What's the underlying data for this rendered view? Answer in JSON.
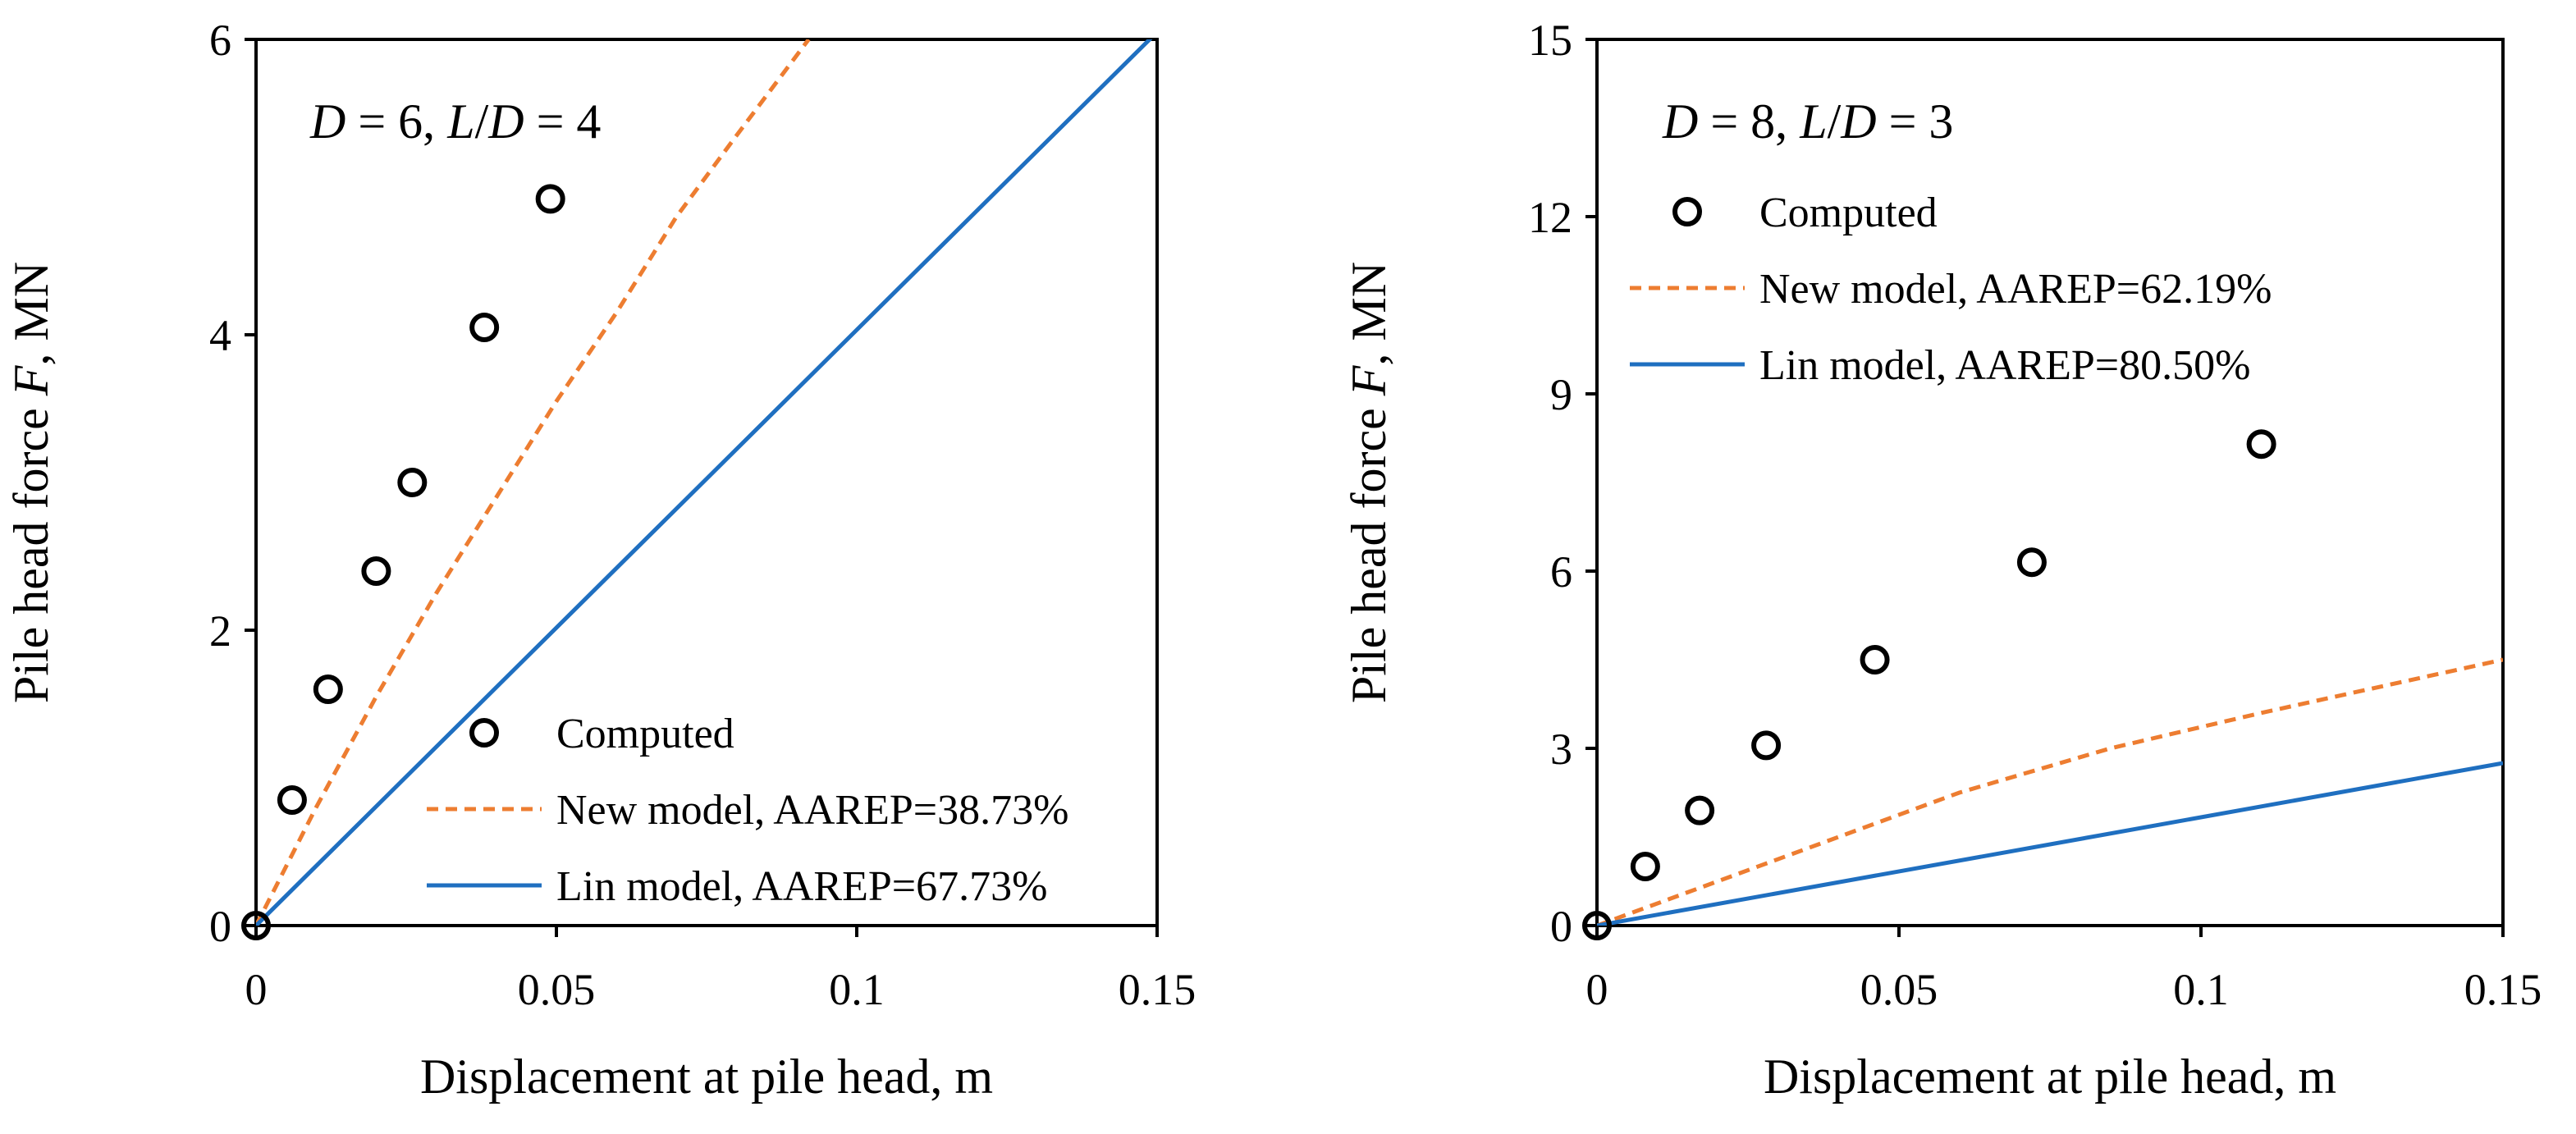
{
  "chart_data": [
    {
      "type": "scatter",
      "panel_label_parts": [
        {
          "text": "D",
          "italic": true
        },
        {
          "text": " = 6, ",
          "italic": false
        },
        {
          "text": "L",
          "italic": true
        },
        {
          "text": "/",
          "italic": false
        },
        {
          "text": "D",
          "italic": true
        },
        {
          "text": " = 4",
          "italic": false
        }
      ],
      "xlabel": "Displacement at pile head, m",
      "ylabel_parts": [
        {
          "text": "Pile head force ",
          "italic": false
        },
        {
          "text": "F",
          "italic": true
        },
        {
          "text": ", MN",
          "italic": false
        }
      ],
      "xlim": [
        0,
        0.15
      ],
      "ylim": [
        0,
        6
      ],
      "xticks": [
        0,
        0.05,
        0.1,
        0.15
      ],
      "xtick_labels": [
        "0",
        "0.05",
        "0.1",
        "0.15"
      ],
      "yticks": [
        0,
        2,
        4,
        6
      ],
      "ytick_labels": [
        "0",
        "2",
        "4",
        "6"
      ],
      "legend_position": "bottom-right",
      "series": [
        {
          "name": "Computed",
          "kind": "marker",
          "color": "#000000",
          "x": [
            0,
            0.006,
            0.012,
            0.02,
            0.026,
            0.038,
            0.049
          ],
          "y": [
            0,
            0.85,
            1.6,
            2.4,
            3.0,
            4.05,
            4.92
          ]
        },
        {
          "name": "New model, AAREP=38.73%",
          "kind": "dashed",
          "color": "#ED7D31",
          "x": [
            0,
            0.01,
            0.02,
            0.03,
            0.04,
            0.05,
            0.06,
            0.07,
            0.08,
            0.092
          ],
          "y": [
            0,
            0.8,
            1.55,
            2.25,
            2.9,
            3.55,
            4.15,
            4.8,
            5.35,
            6.0
          ]
        },
        {
          "name": "Lin model, AAREP=67.73%",
          "kind": "solid",
          "color": "#1F6FC0",
          "x": [
            0,
            0.15
          ],
          "y": [
            0,
            6.05
          ]
        }
      ]
    },
    {
      "type": "scatter",
      "panel_label_parts": [
        {
          "text": "D",
          "italic": true
        },
        {
          "text": " = 8, ",
          "italic": false
        },
        {
          "text": "L",
          "italic": true
        },
        {
          "text": "/",
          "italic": false
        },
        {
          "text": "D",
          "italic": true
        },
        {
          "text": " = 3",
          "italic": false
        }
      ],
      "xlabel": "Displacement at pile head, m",
      "ylabel_parts": [
        {
          "text": "Pile head force ",
          "italic": false
        },
        {
          "text": "F",
          "italic": true
        },
        {
          "text": ", MN",
          "italic": false
        }
      ],
      "xlim": [
        0,
        0.15
      ],
      "ylim": [
        0,
        15
      ],
      "xticks": [
        0,
        0.05,
        0.1,
        0.15
      ],
      "xtick_labels": [
        "0",
        "0.05",
        "0.1",
        "0.15"
      ],
      "yticks": [
        0,
        3,
        6,
        9,
        12,
        15
      ],
      "ytick_labels": [
        "0",
        "3",
        "6",
        "9",
        "12",
        "15"
      ],
      "legend_position": "top-left",
      "series": [
        {
          "name": "Computed",
          "kind": "marker",
          "color": "#000000",
          "x": [
            0,
            0.008,
            0.017,
            0.028,
            0.046,
            0.072,
            0.11
          ],
          "y": [
            0,
            1.0,
            1.95,
            3.05,
            4.5,
            6.15,
            8.15
          ]
        },
        {
          "name": "New model, AAREP=62.19%",
          "kind": "dashed",
          "color": "#ED7D31",
          "x": [
            0,
            0.02,
            0.04,
            0.06,
            0.085,
            0.11,
            0.15
          ],
          "y": [
            0,
            0.75,
            1.5,
            2.25,
            3.0,
            3.6,
            4.5
          ]
        },
        {
          "name": "Lin model, AAREP=80.50%",
          "kind": "solid",
          "color": "#1F6FC0",
          "x": [
            0,
            0.15
          ],
          "y": [
            0,
            2.75
          ]
        }
      ]
    }
  ]
}
